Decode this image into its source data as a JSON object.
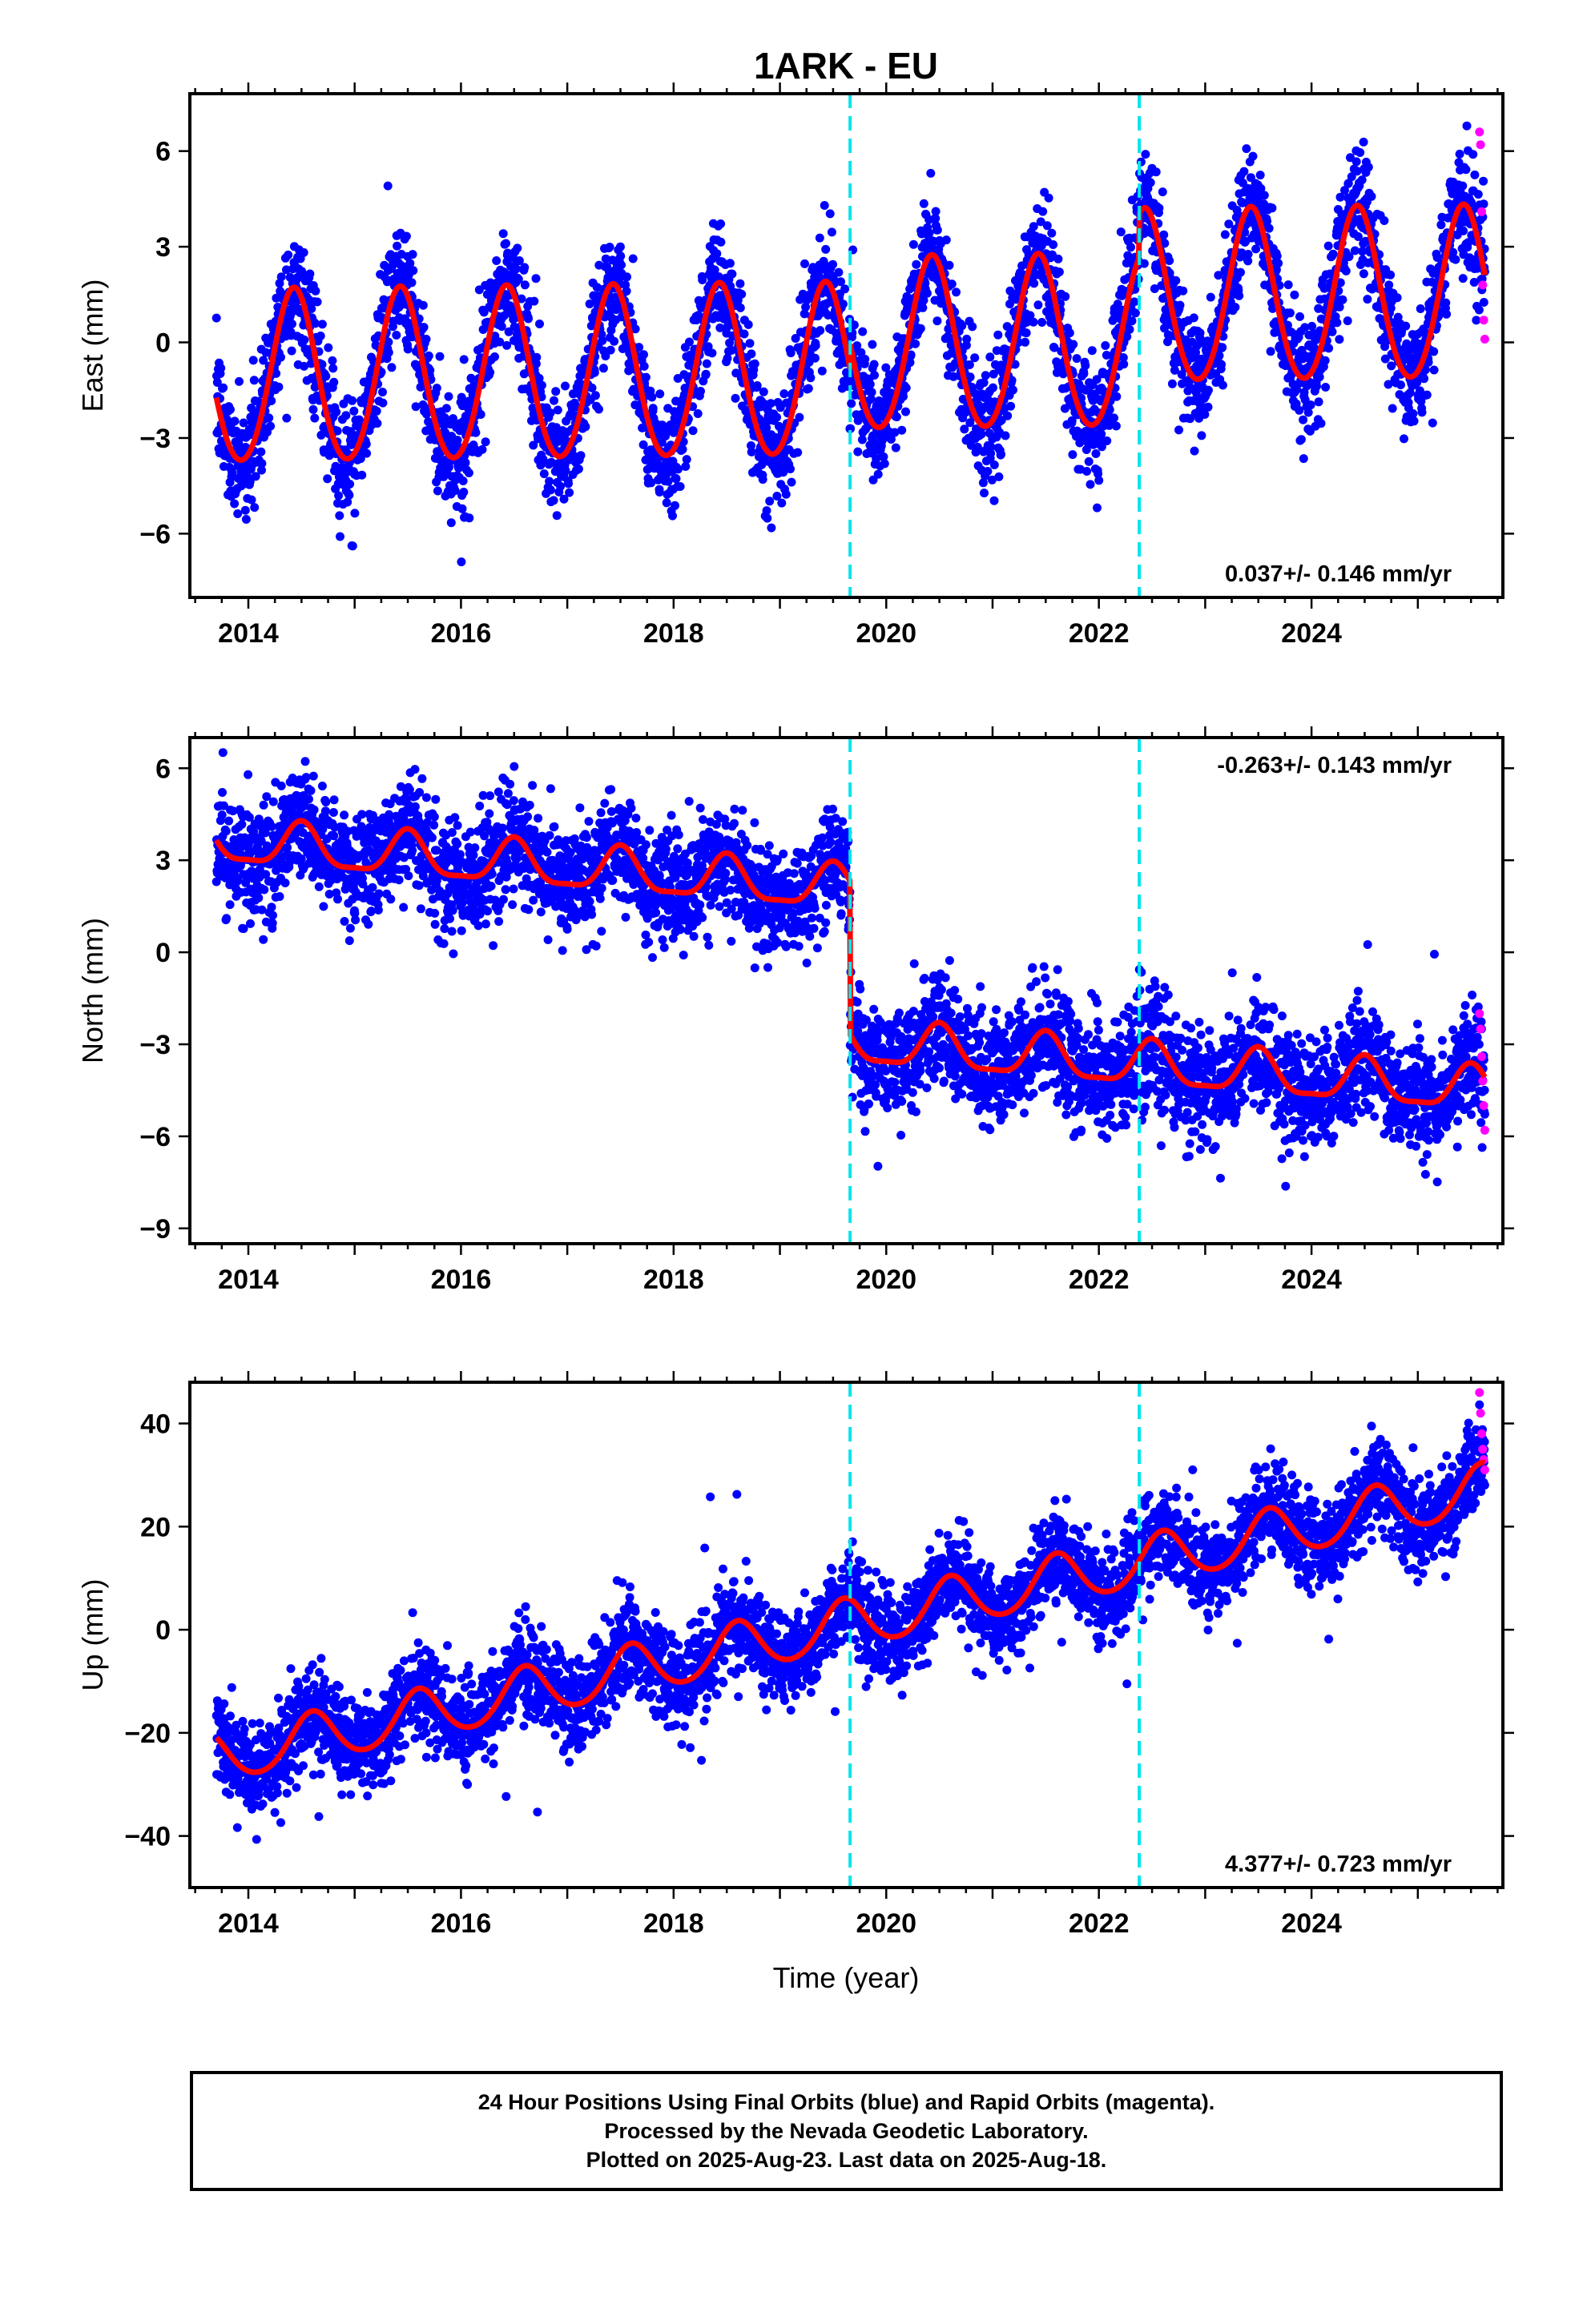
{
  "title": "1ARK - EU",
  "xlabel": "Time (year)",
  "colors": {
    "final_orbits": "#0000ff",
    "rapid_orbits": "#ff00ff",
    "model_fit": "#ff0000",
    "events": "#00e5ee",
    "frame": "#000000"
  },
  "footer": {
    "line1": "24 Hour Positions Using Final Orbits (blue) and Rapid Orbits (magenta).",
    "line2": "Processed by the Nevada Geodetic Laboratory.",
    "line3": "Plotted on 2025-Aug-23. Last data on 2025-Aug-18."
  },
  "chart_data": [
    {
      "type": "scatter",
      "component": "East",
      "ylabel": "East (mm)",
      "xlim": [
        2013.45,
        2025.8
      ],
      "ylim": [
        -8,
        7.8
      ],
      "xticks": [
        2014,
        2016,
        2018,
        2020,
        2022,
        2024
      ],
      "xtick_labels": [
        "2014",
        "2016",
        "2018",
        "2020",
        "2022",
        "2024"
      ],
      "yticks": [
        -6,
        -3,
        0,
        3,
        6
      ],
      "ytick_labels": [
        "−6",
        "−3",
        "0",
        "3",
        "6"
      ],
      "rate_label": "0.037+/- 0.146 mm/yr",
      "rate_label_position": "bottom-right",
      "event_lines": [
        2019.66,
        2022.38
      ],
      "data_span": [
        2013.7,
        2025.63
      ],
      "model": {
        "offset": -1.2,
        "rate": 0.037,
        "annual_amplitude": 2.7,
        "annual_peak": 2013.43,
        "semiannual_amplitude": 0.2,
        "steps": [
          {
            "t": 2019.66,
            "size": 0.8
          },
          {
            "t": 2022.38,
            "size": 1.4
          }
        ]
      },
      "scatter_sigma": 0.9,
      "daily_points": 4300,
      "rapid_points": {
        "x": [
          2025.58,
          2025.59,
          2025.6,
          2025.61,
          2025.62,
          2025.63
        ],
        "y": [
          6.6,
          6.2,
          4.1,
          1.8,
          0.7,
          0.1
        ]
      }
    },
    {
      "type": "scatter",
      "component": "North",
      "ylabel": "North (mm)",
      "xlim": [
        2013.45,
        2025.8
      ],
      "ylim": [
        -9.5,
        7
      ],
      "xticks": [
        2014,
        2016,
        2018,
        2020,
        2022,
        2024
      ],
      "xtick_labels": [
        "2014",
        "2016",
        "2018",
        "2020",
        "2022",
        "2024"
      ],
      "yticks": [
        -9,
        -6,
        -3,
        0,
        3,
        6
      ],
      "ytick_labels": [
        "−9",
        "−6",
        "−3",
        "0",
        "3",
        "6"
      ],
      "rate_label": "-0.263+/- 0.143 mm/yr",
      "rate_label_position": "top-right",
      "event_lines": [
        2019.66,
        2022.38
      ],
      "data_span": [
        2013.7,
        2025.63
      ],
      "model": {
        "offset": 3.6,
        "rate": -0.263,
        "annual_amplitude": 0.7,
        "annual_peak": 2013.5,
        "semiannual_amplitude": 0.2,
        "steps": [
          {
            "t": 2019.66,
            "size": -5.0
          }
        ]
      },
      "scatter_sigma": 0.9,
      "daily_points": 4300,
      "rapid_points": {
        "x": [
          2025.58,
          2025.59,
          2025.6,
          2025.61,
          2025.62,
          2025.63
        ],
        "y": [
          -2.0,
          -2.5,
          -3.4,
          -4.2,
          -5.0,
          -5.8
        ]
      }
    },
    {
      "type": "scatter",
      "component": "Up",
      "ylabel": "Up (mm)",
      "xlim": [
        2013.45,
        2025.8
      ],
      "ylim": [
        -50,
        48
      ],
      "xticks": [
        2014,
        2016,
        2018,
        2020,
        2022,
        2024
      ],
      "xtick_labels": [
        "2014",
        "2016",
        "2018",
        "2020",
        "2022",
        "2024"
      ],
      "yticks": [
        -40,
        -20,
        0,
        20,
        40
      ],
      "ytick_labels": [
        "−40",
        "−20",
        "0",
        "20",
        "40"
      ],
      "rate_label": "4.377+/- 0.723 mm/yr",
      "rate_label_position": "bottom-right",
      "event_lines": [
        2019.66,
        2022.38
      ],
      "data_span": [
        2013.7,
        2025.63
      ],
      "model": {
        "offset": -25,
        "rate": 4.377,
        "annual_amplitude": 4.8,
        "annual_peak": 2013.6,
        "semiannual_amplitude": 0.5,
        "steps": []
      },
      "scatter_sigma": 4.5,
      "daily_points": 4300,
      "rapid_points": {
        "x": [
          2025.58,
          2025.59,
          2025.6,
          2025.61,
          2025.62,
          2025.63
        ],
        "y": [
          46,
          42,
          38,
          35,
          33,
          31
        ]
      }
    }
  ]
}
